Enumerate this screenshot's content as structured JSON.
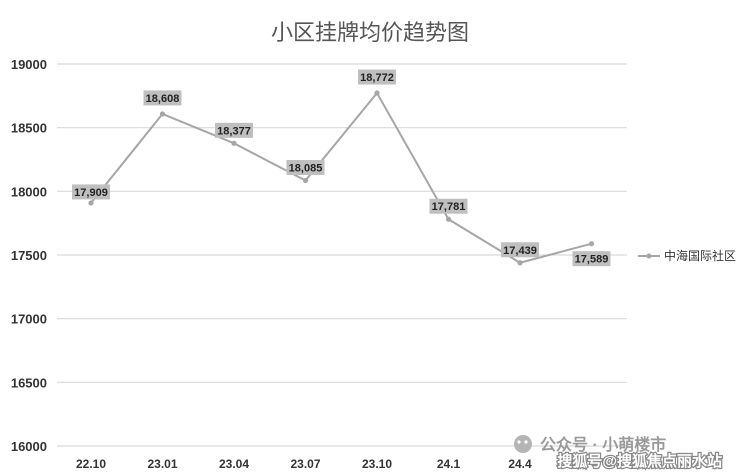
{
  "chart_data": {
    "type": "line",
    "title": "小区挂牌均价趋势图",
    "categories": [
      "22.10",
      "23.01",
      "23.04",
      "23.07",
      "23.10",
      "24.1",
      "24.4"
    ],
    "series": [
      {
        "name": "中海国际社区",
        "x": [
          "22.10",
          "23.01",
          "23.04",
          "23.07",
          "23.10",
          "24.1",
          "24.4",
          ""
        ],
        "values": [
          17909,
          18608,
          18377,
          18085,
          18772,
          17781,
          17439,
          17589
        ],
        "labels": [
          "17,909",
          "18,608",
          "18,377",
          "18,085",
          "18,772",
          "17,781",
          "17,439",
          "17,589"
        ]
      }
    ],
    "yticks": [
      "19000",
      "18500",
      "18000",
      "17500",
      "17000",
      "16500",
      "16000"
    ],
    "ylim": [
      16000,
      19000
    ],
    "grid": true,
    "legend": "right",
    "line_color": "#a6a6a6"
  },
  "watermark": {
    "line1": "公众号 · 小萌楼市",
    "line2": "搜狐号@搜狐焦点丽水站"
  }
}
